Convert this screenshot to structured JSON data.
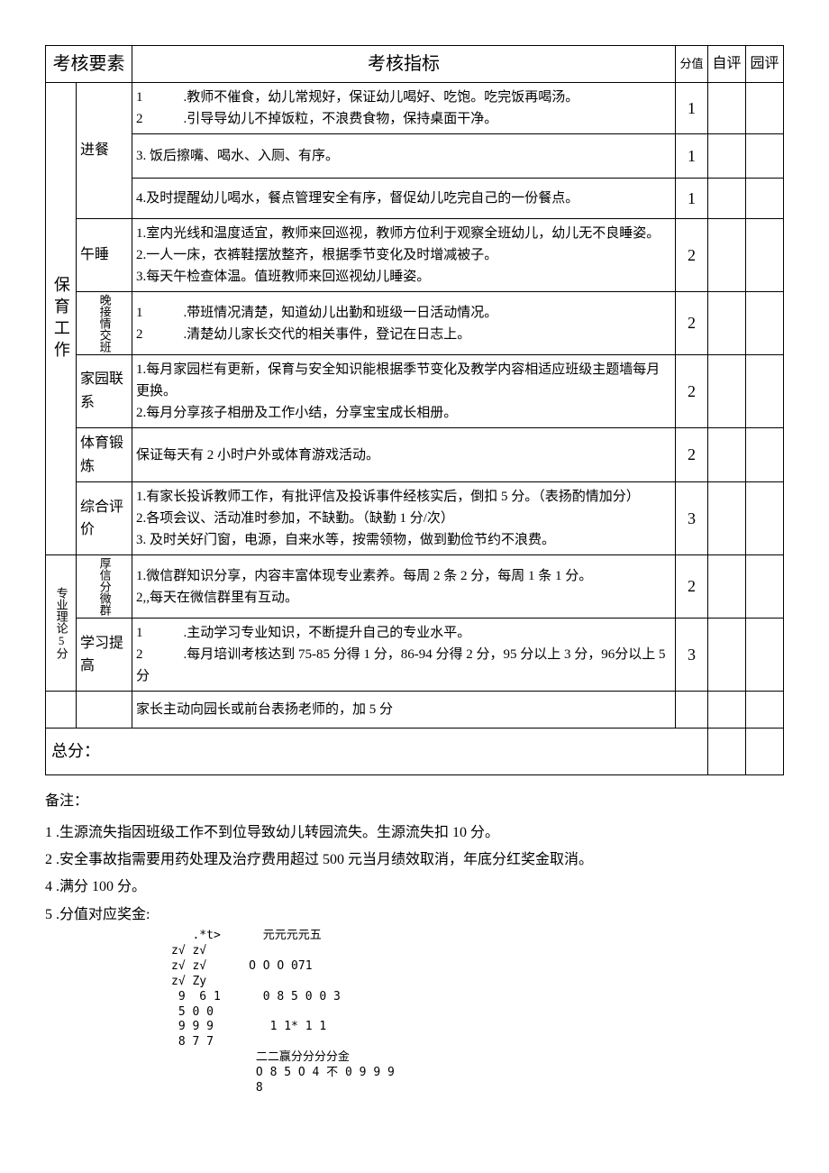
{
  "header": {
    "element": "考核要素",
    "indicator": "考核指标",
    "scoreValue": "分值",
    "selfEval": "自评",
    "gardenEval": "园评"
  },
  "categories": {
    "baoyu": "保育工作",
    "zhuanye": "专业理论5分"
  },
  "subcats": {
    "jincan": "进餐",
    "wushui": "午睡",
    "jiaojie": "晚接情交班",
    "jiayuan": "家园联系",
    "tiyu": "体育锻炼",
    "zonghe": "综合评价",
    "weixin": "厚信分微群",
    "xuexi": "学习提高"
  },
  "rows": {
    "r1": {
      "text": "1　　　.教师不催食，幼儿常规好，保证幼儿喝好、吃饱。吃完饭再喝汤。\n2　　　.引导导幼儿不掉饭粒，不浪费食物，保持桌面干净。",
      "score": "1"
    },
    "r2": {
      "text": "3. 饭后擦嘴、喝水、入厕、有序。",
      "score": "1"
    },
    "r3": {
      "text": "4.及时提醒幼儿喝水，餐点管理安全有序，督促幼儿吃完自己的一份餐点。",
      "score": "1"
    },
    "r4": {
      "text": "1.室内光线和温度适宜，教师来回巡视，教师方位利于观察全班幼儿，幼儿无不良睡姿。\n2.一人一床，衣裤鞋摆放整齐，根据季节变化及时增减被子。\n3.每天午检查体温。值班教师来回巡视幼儿睡姿。",
      "score": "2"
    },
    "r5": {
      "text": "1　　　.带班情况清楚，知道幼儿出勤和班级一日活动情况。\n2　　　.清楚幼儿家长交代的相关事件，登记在日志上。",
      "score": "2"
    },
    "r6": {
      "text": "1.每月家园栏有更新，保育与安全知识能根据季节变化及教学内容相适应班级主题墙每月更换。\n2.每月分享孩子相册及工作小结，分享宝宝成长相册。",
      "score": "2"
    },
    "r7": {
      "text": "保证每天有 2 小时户外或体育游戏活动。",
      "score": "2"
    },
    "r8": {
      "text": "1.有家长投诉教师工作，有批评信及投诉事件经核实后，倒扣 5 分。（表扬酌情加分）\n2.各项会议、活动准时参加，不缺勤。（缺勤 1 分/次）\n3. 及时关好门窗，电源，自来水等，按需领物，做到勤俭节约不浪费。",
      "score": "3"
    },
    "r9": {
      "text": "1.微信群知识分享，内容丰富体现专业素养。每周 2 条 2 分，每周 1 条 1 分。\n2,,每天在微信群里有互动。",
      "score": "2"
    },
    "r10": {
      "text": "1　　　.主动学习专业知识，不断提升自己的专业水平。\n2　　　.每月培训考核达到 75-85 分得 1 分，86-94 分得 2 分，95 分以上 3 分，96分以上 5 分",
      "score": "3"
    },
    "r11": {
      "text": "家长主动向园长或前台表扬老师的，加 5 分",
      "score": ""
    }
  },
  "total": "总分：",
  "notes": {
    "title": "备注：",
    "n1": "1 .生源流失指因班级工作不到位导致幼儿转园流失。生源流失扣 10 分。",
    "n2": "2 .安全事故指需要用药处理及治疗费用超过 500 元当月绩效取消，年底分红奖金取消。",
    "n4": "4 .满分 100 分。",
    "n5": "5 .分值对应奖金:"
  },
  "garbled": "   .*t>      元元元元五\nz√ z√\nz√ z√      O O O 071\nz√ Zy\n 9  6 1      0 8 5 0 0 3\n 5 0 0\n 9 9 9        1 1* 1 1\n 8 7 7\n            二二赢分分分分金\n            O 8 5 O 4 不 0 9 9 9\n            8"
}
